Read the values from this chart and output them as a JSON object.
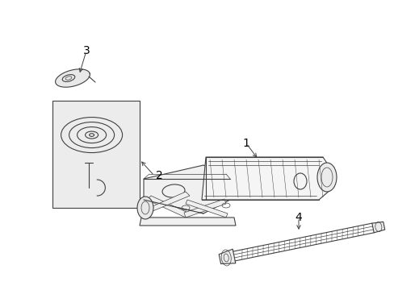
{
  "background_color": "#ffffff",
  "line_color": "#404040",
  "label_color": "#000000",
  "fig_width": 4.89,
  "fig_height": 3.6,
  "dpi": 100,
  "label_fontsize": 10
}
